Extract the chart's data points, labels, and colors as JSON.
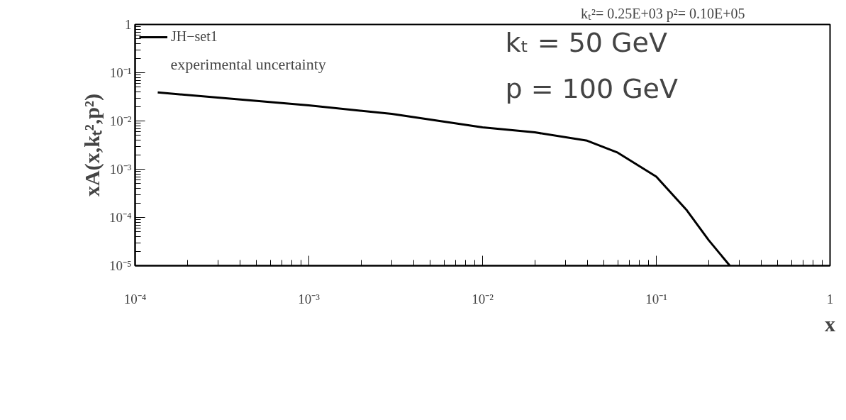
{
  "chart_data": {
    "type": "line",
    "xlabel": "x",
    "ylabel": "xA(x,kₜ²,p²)",
    "x": [
      0.000135,
      0.001,
      0.003,
      0.01,
      0.02,
      0.04,
      0.06,
      0.1,
      0.15,
      0.2,
      0.265
    ],
    "series": [
      {
        "name": "JH−set1",
        "color": "#000000",
        "values": [
          0.039,
          0.021,
          0.014,
          0.0074,
          0.0058,
          0.0039,
          0.0022,
          0.0007,
          0.00014,
          3.4e-05,
          1e-05
        ]
      }
    ],
    "log": "xy",
    "xlim": [
      0.0001,
      1
    ],
    "ylim": [
      1e-05,
      1
    ],
    "xticks": [
      {
        "value": 0.0001,
        "label": "10⁻⁴"
      },
      {
        "value": 0.001,
        "label": "10⁻³"
      },
      {
        "value": 0.01,
        "label": "10⁻²"
      },
      {
        "value": 0.1,
        "label": "10⁻¹"
      },
      {
        "value": 1,
        "label": "1"
      }
    ],
    "yticks": [
      {
        "value": 1e-05,
        "label": "10⁻⁵"
      },
      {
        "value": 0.0001,
        "label": "10⁻⁴"
      },
      {
        "value": 0.001,
        "label": "10⁻³"
      },
      {
        "value": 0.01,
        "label": "10⁻²"
      },
      {
        "value": 0.1,
        "label": "10⁻¹"
      },
      {
        "value": 1,
        "label": "1"
      }
    ],
    "grid": false,
    "legend": "top left",
    "annotations": [
      "kₜ²= 0.25E+03 p²= 0.10E+05",
      "experimental uncertainty",
      "kₜ = 50 GeV",
      "p = 100 GeV"
    ]
  }
}
